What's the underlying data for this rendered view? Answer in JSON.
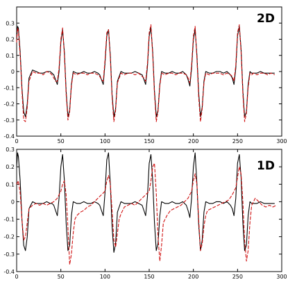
{
  "chart_data": [
    {
      "type": "line",
      "panel_label": "2D",
      "xlim": [
        0,
        300
      ],
      "ylim": [
        -0.4,
        0.4
      ],
      "xticks": [
        0,
        50,
        100,
        150,
        200,
        250,
        300
      ],
      "yticks": [
        -0.4,
        -0.3,
        -0.2,
        -0.1,
        0,
        0.1,
        0.2,
        0.3
      ],
      "ytick_labels": [
        "-0.4",
        "-0.3",
        "-0.2",
        "-0.1",
        "0",
        "0.1",
        "0.2",
        "0.3"
      ],
      "grid": false,
      "series": [
        {
          "color": "#000000",
          "style": "solid",
          "x": [
            0,
            1,
            2,
            4,
            6,
            8,
            10,
            12,
            14,
            18,
            22,
            26,
            30,
            34,
            38,
            40,
            42,
            44,
            46,
            48,
            50,
            52,
            54,
            56,
            58,
            60,
            62,
            64,
            68,
            72,
            76,
            80,
            84,
            88,
            92,
            94,
            96,
            98,
            100,
            102,
            104,
            106,
            108,
            110,
            112,
            114,
            118,
            122,
            126,
            130,
            134,
            138,
            142,
            144,
            146,
            148,
            150,
            152,
            154,
            156,
            158,
            160,
            162,
            164,
            168,
            172,
            176,
            180,
            184,
            188,
            192,
            194,
            196,
            198,
            200,
            202,
            204,
            206,
            208,
            210,
            212,
            214,
            218,
            222,
            226,
            230,
            234,
            238,
            242,
            244,
            246,
            248,
            250,
            252,
            254,
            256,
            258,
            260,
            262,
            264,
            266,
            268,
            272,
            276,
            280,
            284,
            288,
            292
          ],
          "y": [
            0.2,
            0.28,
            0.27,
            0.12,
            -0.1,
            -0.25,
            -0.28,
            -0.2,
            -0.04,
            0.01,
            0.0,
            -0.01,
            -0.01,
            0.0,
            0.0,
            -0.01,
            -0.02,
            -0.05,
            -0.08,
            0.0,
            0.18,
            0.26,
            0.12,
            -0.12,
            -0.28,
            -0.24,
            -0.08,
            0.0,
            -0.01,
            -0.01,
            0.0,
            -0.01,
            -0.01,
            0.0,
            -0.01,
            -0.02,
            -0.05,
            -0.08,
            0.05,
            0.22,
            0.26,
            0.1,
            -0.14,
            -0.28,
            -0.23,
            -0.06,
            0.0,
            -0.01,
            -0.01,
            -0.01,
            0.0,
            -0.01,
            -0.02,
            -0.05,
            -0.08,
            0.03,
            0.22,
            0.27,
            0.12,
            -0.12,
            -0.28,
            -0.24,
            -0.08,
            0.0,
            -0.01,
            -0.01,
            0.0,
            -0.01,
            -0.01,
            0.0,
            -0.02,
            -0.05,
            -0.09,
            0.02,
            0.2,
            0.26,
            0.1,
            -0.13,
            -0.28,
            -0.22,
            -0.06,
            0.0,
            -0.01,
            -0.01,
            0.0,
            0.0,
            -0.01,
            0.0,
            -0.02,
            -0.04,
            -0.08,
            0.02,
            0.22,
            0.28,
            0.14,
            -0.12,
            -0.28,
            -0.25,
            -0.08,
            0.0,
            -0.01,
            -0.01,
            -0.01,
            0.0,
            -0.01,
            -0.01,
            -0.01,
            -0.01
          ]
        },
        {
          "color": "#d01010",
          "style": "dashed",
          "x": [
            0,
            1,
            2,
            4,
            6,
            8,
            10,
            12,
            14,
            18,
            22,
            26,
            30,
            34,
            38,
            40,
            42,
            44,
            46,
            48,
            50,
            52,
            54,
            56,
            58,
            60,
            62,
            64,
            68,
            72,
            76,
            80,
            84,
            88,
            92,
            94,
            96,
            98,
            100,
            102,
            104,
            106,
            108,
            110,
            112,
            114,
            118,
            122,
            126,
            130,
            134,
            138,
            142,
            144,
            146,
            148,
            150,
            152,
            154,
            156,
            158,
            160,
            162,
            164,
            168,
            172,
            176,
            180,
            184,
            188,
            192,
            194,
            196,
            198,
            200,
            202,
            204,
            206,
            208,
            210,
            212,
            214,
            218,
            222,
            226,
            230,
            234,
            238,
            242,
            244,
            246,
            248,
            250,
            252,
            254,
            256,
            258,
            260,
            262,
            264,
            266,
            268,
            272,
            276,
            280,
            284,
            288,
            292
          ],
          "y": [
            0.18,
            0.27,
            0.25,
            0.1,
            -0.12,
            -0.3,
            -0.31,
            -0.22,
            -0.06,
            0.0,
            -0.01,
            -0.01,
            -0.02,
            0.0,
            -0.01,
            -0.02,
            -0.04,
            -0.06,
            -0.06,
            0.02,
            0.2,
            0.27,
            0.1,
            -0.14,
            -0.3,
            -0.25,
            -0.09,
            -0.01,
            -0.02,
            -0.01,
            -0.01,
            -0.02,
            -0.01,
            -0.01,
            -0.02,
            -0.03,
            -0.05,
            -0.06,
            0.07,
            0.24,
            0.26,
            0.08,
            -0.16,
            -0.31,
            -0.24,
            -0.07,
            -0.01,
            -0.02,
            -0.01,
            -0.01,
            -0.02,
            -0.01,
            -0.03,
            -0.04,
            -0.06,
            0.05,
            0.24,
            0.29,
            0.1,
            -0.14,
            -0.31,
            -0.25,
            -0.09,
            -0.01,
            -0.02,
            -0.01,
            -0.01,
            -0.02,
            -0.01,
            -0.01,
            -0.02,
            -0.04,
            -0.07,
            0.04,
            0.22,
            0.28,
            0.08,
            -0.16,
            -0.31,
            -0.23,
            -0.07,
            -0.01,
            -0.02,
            -0.01,
            -0.01,
            -0.01,
            -0.02,
            -0.01,
            -0.02,
            -0.03,
            -0.06,
            0.04,
            0.24,
            0.29,
            0.12,
            -0.14,
            -0.31,
            -0.26,
            -0.1,
            -0.01,
            -0.02,
            -0.01,
            -0.02,
            -0.01,
            -0.01,
            -0.02,
            -0.01,
            -0.02
          ]
        }
      ]
    },
    {
      "type": "line",
      "panel_label": "1D",
      "xlim": [
        0,
        300
      ],
      "ylim": [
        -0.4,
        0.3
      ],
      "xticks": [
        0,
        50,
        100,
        150,
        200,
        250,
        300
      ],
      "yticks": [
        -0.4,
        -0.3,
        -0.2,
        -0.1,
        0,
        0.1,
        0.2,
        0.3
      ],
      "ytick_labels": [
        "-0.4",
        "-0.3",
        "-0.2",
        "-0.1",
        "0",
        "0.1",
        "0.2",
        "0.3"
      ],
      "grid": false,
      "series": [
        {
          "color": "#000000",
          "style": "solid",
          "x": [
            0,
            1,
            2,
            4,
            6,
            8,
            10,
            12,
            14,
            18,
            22,
            26,
            30,
            34,
            38,
            40,
            42,
            44,
            46,
            48,
            50,
            52,
            54,
            56,
            58,
            60,
            62,
            64,
            68,
            72,
            76,
            80,
            84,
            88,
            92,
            94,
            96,
            98,
            100,
            102,
            104,
            106,
            108,
            110,
            112,
            114,
            118,
            122,
            126,
            130,
            134,
            138,
            142,
            144,
            146,
            148,
            150,
            152,
            154,
            156,
            158,
            160,
            162,
            164,
            168,
            172,
            176,
            180,
            184,
            188,
            192,
            194,
            196,
            198,
            200,
            202,
            204,
            206,
            208,
            210,
            212,
            214,
            218,
            222,
            226,
            230,
            234,
            238,
            242,
            244,
            246,
            248,
            250,
            252,
            254,
            256,
            258,
            260,
            262,
            264,
            266,
            268,
            272,
            276,
            280,
            284,
            288,
            292
          ],
          "y": [
            0.2,
            0.28,
            0.26,
            0.12,
            -0.1,
            -0.25,
            -0.28,
            -0.2,
            -0.04,
            0.0,
            -0.01,
            -0.01,
            -0.01,
            0.0,
            -0.01,
            -0.01,
            -0.02,
            -0.05,
            -0.08,
            0.02,
            0.2,
            0.27,
            0.12,
            -0.12,
            -0.28,
            -0.25,
            -0.08,
            0.0,
            -0.01,
            -0.01,
            0.0,
            -0.01,
            -0.01,
            0.0,
            -0.01,
            -0.02,
            -0.05,
            -0.08,
            0.05,
            0.24,
            0.28,
            0.1,
            -0.14,
            -0.29,
            -0.24,
            -0.06,
            0.0,
            -0.01,
            -0.01,
            -0.01,
            0.0,
            -0.01,
            -0.02,
            -0.05,
            -0.08,
            0.03,
            0.22,
            0.27,
            0.12,
            -0.12,
            -0.28,
            -0.24,
            -0.08,
            0.0,
            -0.01,
            -0.01,
            0.0,
            -0.01,
            -0.01,
            0.0,
            -0.02,
            -0.05,
            -0.09,
            0.02,
            0.2,
            0.28,
            0.1,
            -0.13,
            -0.28,
            -0.22,
            -0.06,
            0.0,
            -0.01,
            -0.01,
            0.0,
            0.0,
            -0.01,
            0.0,
            -0.02,
            -0.04,
            -0.08,
            0.02,
            0.22,
            0.27,
            0.14,
            -0.12,
            -0.28,
            -0.25,
            -0.08,
            0.0,
            -0.01,
            -0.01,
            -0.01,
            0.0,
            -0.01,
            -0.01,
            -0.01,
            -0.01
          ]
        },
        {
          "color": "#d01010",
          "style": "dashed",
          "x": [
            0,
            2,
            4,
            6,
            8,
            10,
            12,
            14,
            18,
            22,
            26,
            30,
            34,
            38,
            42,
            46,
            50,
            52,
            54,
            56,
            58,
            60,
            62,
            64,
            66,
            68,
            72,
            76,
            80,
            84,
            88,
            92,
            96,
            100,
            102,
            104,
            106,
            108,
            110,
            112,
            114,
            116,
            118,
            122,
            126,
            130,
            134,
            138,
            142,
            146,
            150,
            152,
            154,
            156,
            158,
            160,
            162,
            164,
            166,
            170,
            174,
            178,
            182,
            186,
            190,
            194,
            198,
            200,
            202,
            204,
            206,
            208,
            210,
            212,
            214,
            216,
            220,
            224,
            228,
            232,
            236,
            240,
            244,
            248,
            250,
            252,
            254,
            256,
            258,
            260,
            262,
            264,
            266,
            270,
            274,
            278,
            282,
            286,
            290,
            294
          ],
          "y": [
            0.1,
            0.12,
            0.05,
            -0.1,
            -0.22,
            -0.2,
            -0.12,
            -0.04,
            -0.02,
            -0.01,
            -0.02,
            -0.01,
            -0.02,
            -0.01,
            0.0,
            0.02,
            0.06,
            0.1,
            0.12,
            0.04,
            -0.15,
            -0.36,
            -0.3,
            -0.18,
            -0.1,
            -0.08,
            -0.06,
            -0.05,
            -0.03,
            -0.02,
            0.0,
            0.02,
            0.04,
            0.06,
            0.12,
            0.15,
            0.1,
            -0.05,
            -0.22,
            -0.26,
            -0.18,
            -0.1,
            -0.07,
            -0.03,
            -0.02,
            -0.01,
            -0.02,
            0.0,
            0.02,
            0.04,
            0.06,
            0.12,
            0.2,
            0.22,
            0.05,
            -0.2,
            -0.34,
            -0.25,
            -0.12,
            -0.08,
            -0.05,
            -0.04,
            -0.03,
            -0.02,
            0.0,
            0.02,
            0.06,
            0.12,
            0.16,
            0.1,
            -0.1,
            -0.28,
            -0.24,
            -0.14,
            -0.08,
            -0.05,
            -0.04,
            -0.03,
            -0.02,
            -0.01,
            0.0,
            0.01,
            0.04,
            0.08,
            0.14,
            0.2,
            0.16,
            0.0,
            -0.22,
            -0.34,
            -0.28,
            -0.12,
            -0.02,
            0.02,
            0.0,
            -0.02,
            -0.03,
            -0.02,
            -0.03,
            -0.02
          ]
        }
      ]
    }
  ]
}
